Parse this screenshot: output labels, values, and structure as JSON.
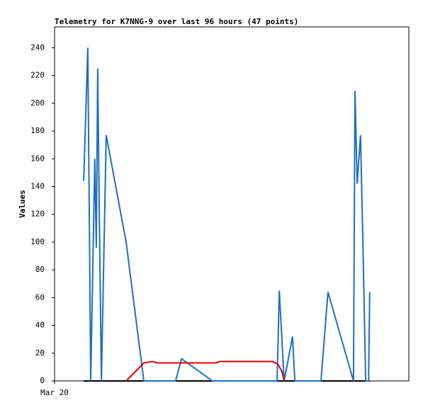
{
  "chart_data": {
    "type": "line",
    "title": "Telemetry for K7NNG-9 over last 96 hours (47 points)",
    "y_label": "Values",
    "xlim": [
      0,
      96
    ],
    "xticks": [
      {
        "value": 0,
        "label": "Mar 20"
      }
    ],
    "ylim": [
      0,
      255
    ],
    "yticks": [
      0,
      20,
      40,
      60,
      80,
      100,
      120,
      140,
      160,
      180,
      200,
      220,
      240
    ],
    "series": [
      {
        "color": "#000000",
        "x": [
          7.9,
          85.4
        ],
        "values": [
          0,
          0
        ]
      },
      {
        "color": "#1f6fbf",
        "x": [
          7.9,
          9.0,
          9.4,
          9.8,
          10.9,
          11.3,
          11.7,
          12.1,
          12.7,
          14.0,
          19.4,
          24.2,
          32.8,
          34.4,
          42.8,
          60.3,
          60.9,
          62.2,
          64.5,
          65.1,
          72.2,
          74.1,
          81.0,
          81.4,
          82.0,
          82.9,
          83.5,
          84.3,
          85.1,
          85.4
        ],
        "values": [
          144,
          240,
          122,
          0,
          160,
          96,
          225,
          127,
          0,
          177,
          100,
          0,
          0,
          16,
          0,
          0,
          65,
          0,
          32,
          0,
          0,
          64,
          0,
          209,
          142,
          177,
          106,
          0,
          0,
          64
        ]
      },
      {
        "color": "#e00000",
        "x": [
          19.4,
          24.2,
          26.5,
          27.8,
          32.8,
          43.8,
          44.7,
          59.1,
          60.5,
          61.6,
          62.2
        ],
        "values": [
          0,
          13,
          14,
          13,
          13,
          13,
          14,
          14,
          12,
          7,
          0
        ]
      }
    ]
  }
}
